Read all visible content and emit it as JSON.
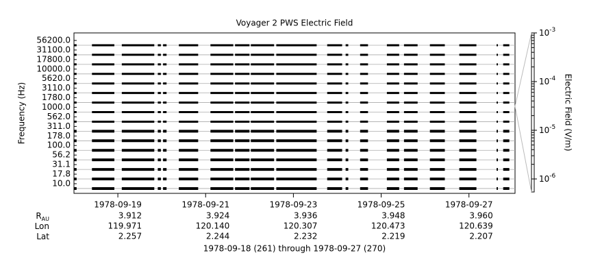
{
  "chart_data": {
    "type": "channel-strips",
    "title": "Voyager 2 PWS Electric Field",
    "y_label": "Frequency (Hz)",
    "categories": [
      "56200.0",
      "31100.0",
      "17800.0",
      "10000.0",
      "5620.0",
      "3110.0",
      "1780.0",
      "1000.0",
      "562.0",
      "311.0",
      "178.0",
      "100.0",
      "56.2",
      "31.1",
      "17.8",
      "10.0"
    ],
    "xlim": [
      0,
      10.05
    ],
    "xticks": [
      {
        "value": 1,
        "label": "1978-09-19"
      },
      {
        "value": 3,
        "label": "1978-09-21"
      },
      {
        "value": 5,
        "label": "1978-09-23"
      },
      {
        "value": 7,
        "label": "1978-09-25"
      },
      {
        "value": 9,
        "label": "1978-09-27"
      }
    ],
    "data_intervals": [
      [
        0.0,
        0.06
      ],
      [
        0.41,
        0.92
      ],
      [
        1.09,
        1.83
      ],
      [
        1.91,
        1.98
      ],
      [
        2.03,
        2.11
      ],
      [
        2.39,
        2.83
      ],
      [
        3.11,
        3.63
      ],
      [
        3.67,
        4.0
      ],
      [
        4.03,
        4.56
      ],
      [
        4.61,
        5.53
      ],
      [
        5.77,
        6.11
      ],
      [
        6.19,
        6.25
      ],
      [
        6.52,
        6.7
      ],
      [
        7.13,
        7.41
      ],
      [
        7.52,
        7.83
      ],
      [
        8.11,
        8.45
      ],
      [
        8.78,
        9.17
      ],
      [
        9.63,
        9.66
      ],
      [
        9.78,
        9.92
      ]
    ],
    "color": "#000000",
    "y2_label": "Electric Field (V/m)",
    "y2_log": true,
    "y2lim": [
      5.4e-07,
      0.001
    ],
    "y2ticks": [
      {
        "value": 0.001,
        "label": "10",
        "exponent": "-3"
      },
      {
        "value": 0.0001,
        "label": "10",
        "exponent": "-4"
      },
      {
        "value": 1e-05,
        "label": "10",
        "exponent": "-5"
      },
      {
        "value": 1e-06,
        "label": "10",
        "exponent": "-6"
      }
    ],
    "ephemeris": [
      {
        "label": "R",
        "subscript": "AU",
        "values": [
          "3.912",
          "3.924",
          "3.936",
          "3.948",
          "3.960"
        ]
      },
      {
        "label": "Lon",
        "values": [
          "119.971",
          "120.140",
          "120.307",
          "120.473",
          "120.639"
        ]
      },
      {
        "label": "Lat",
        "values": [
          "2.257",
          "2.244",
          "2.232",
          "2.219",
          "2.207"
        ]
      }
    ],
    "footer": "1978-09-18 (261) through 1978-09-27 (270)"
  }
}
